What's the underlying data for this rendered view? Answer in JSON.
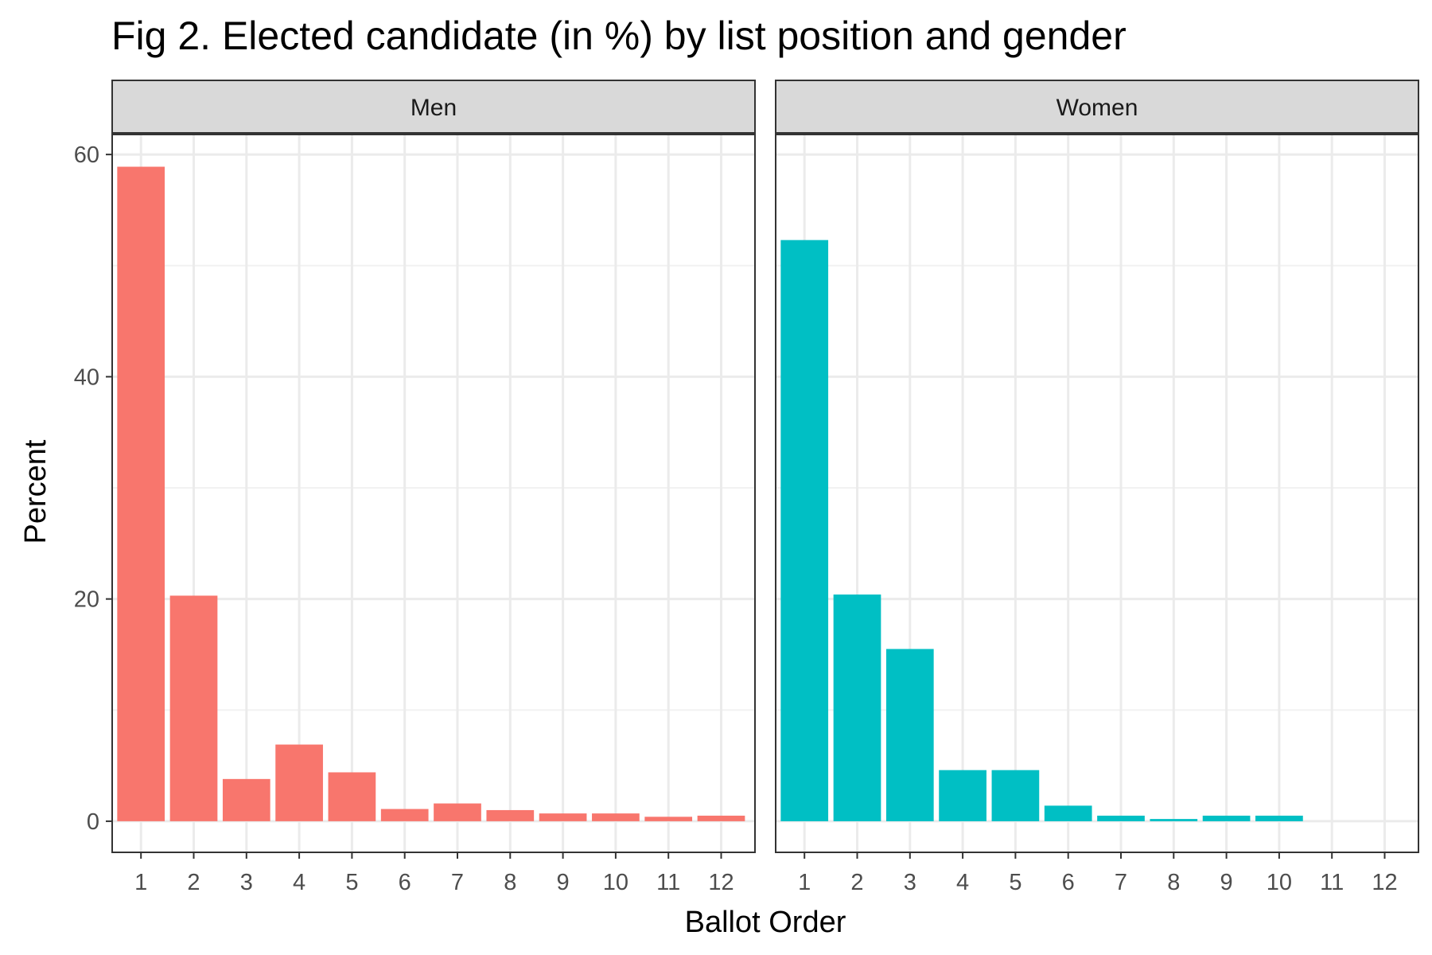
{
  "chart_data": {
    "type": "bar",
    "title": "Fig 2. Elected candidate (in %) by list position and gender",
    "xlabel": "Ballot Order",
    "ylabel": "Percent",
    "categories": [
      "1",
      "2",
      "3",
      "4",
      "5",
      "6",
      "7",
      "8",
      "9",
      "10",
      "11",
      "12"
    ],
    "ylim": [
      -2.8,
      61.8
    ],
    "yticks": [
      0,
      20,
      40,
      60
    ],
    "grid": true,
    "legend": "none",
    "facets": [
      {
        "label": "Men",
        "color": "#F8766D",
        "values": [
          58.9,
          20.3,
          3.8,
          6.9,
          4.4,
          1.1,
          1.6,
          1.0,
          0.7,
          0.7,
          0.4,
          0.5
        ]
      },
      {
        "label": "Women",
        "color": "#00BFC4",
        "values": [
          52.3,
          20.4,
          15.5,
          4.6,
          4.6,
          1.4,
          0.5,
          0.2,
          0.5,
          0.5,
          null,
          null
        ]
      }
    ]
  }
}
